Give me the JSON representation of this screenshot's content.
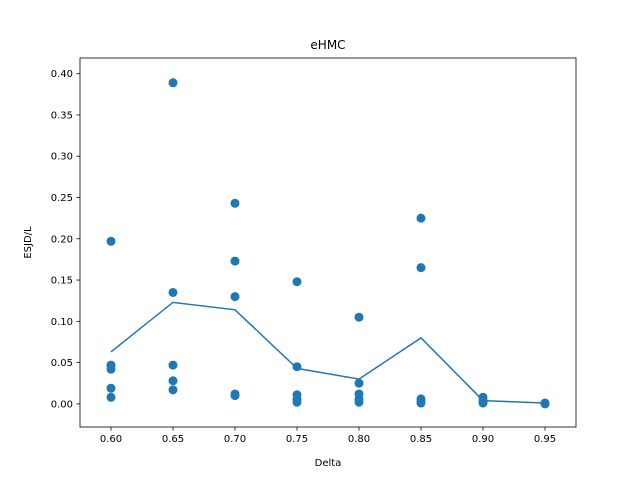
{
  "chart_data": {
    "type": "scatter",
    "title": "eHMC",
    "xlabel": "Delta",
    "ylabel": "ESJD/L",
    "xlim": [
      0.575,
      0.975
    ],
    "ylim": [
      -0.028,
      0.419
    ],
    "x_ticks": [
      "0.60",
      "0.65",
      "0.70",
      "0.75",
      "0.80",
      "0.85",
      "0.90",
      "0.95"
    ],
    "x_tick_values": [
      0.6,
      0.65,
      0.7,
      0.75,
      0.8,
      0.85,
      0.9,
      0.95
    ],
    "y_ticks": [
      "0.00",
      "0.05",
      "0.10",
      "0.15",
      "0.20",
      "0.25",
      "0.30",
      "0.35",
      "0.40"
    ],
    "y_tick_values": [
      0.0,
      0.05,
      0.1,
      0.15,
      0.2,
      0.25,
      0.3,
      0.35,
      0.4
    ],
    "grid": false,
    "color": "#1f77b4",
    "series": [
      {
        "kind": "scatter",
        "points": [
          [
            0.6,
            0.197
          ],
          [
            0.6,
            0.047
          ],
          [
            0.6,
            0.042
          ],
          [
            0.6,
            0.019
          ],
          [
            0.6,
            0.008
          ],
          [
            0.65,
            0.389
          ],
          [
            0.65,
            0.135
          ],
          [
            0.65,
            0.047
          ],
          [
            0.65,
            0.028
          ],
          [
            0.65,
            0.017
          ],
          [
            0.7,
            0.243
          ],
          [
            0.7,
            0.173
          ],
          [
            0.7,
            0.13
          ],
          [
            0.7,
            0.012
          ],
          [
            0.7,
            0.01
          ],
          [
            0.75,
            0.148
          ],
          [
            0.75,
            0.045
          ],
          [
            0.75,
            0.011
          ],
          [
            0.75,
            0.006
          ],
          [
            0.75,
            0.002
          ],
          [
            0.8,
            0.105
          ],
          [
            0.8,
            0.025
          ],
          [
            0.8,
            0.012
          ],
          [
            0.8,
            0.006
          ],
          [
            0.8,
            0.002
          ],
          [
            0.85,
            0.225
          ],
          [
            0.85,
            0.165
          ],
          [
            0.85,
            0.006
          ],
          [
            0.85,
            0.003
          ],
          [
            0.85,
            0.001
          ],
          [
            0.9,
            0.008
          ],
          [
            0.9,
            0.004
          ],
          [
            0.9,
            0.001
          ],
          [
            0.95,
            0.001
          ],
          [
            0.95,
            0.0005
          ],
          [
            0.95,
            0.0
          ]
        ]
      },
      {
        "kind": "line",
        "x": [
          0.6,
          0.65,
          0.7,
          0.75,
          0.8,
          0.85,
          0.9,
          0.95
        ],
        "y": [
          0.063,
          0.123,
          0.114,
          0.043,
          0.03,
          0.08,
          0.004,
          0.001
        ]
      }
    ]
  }
}
